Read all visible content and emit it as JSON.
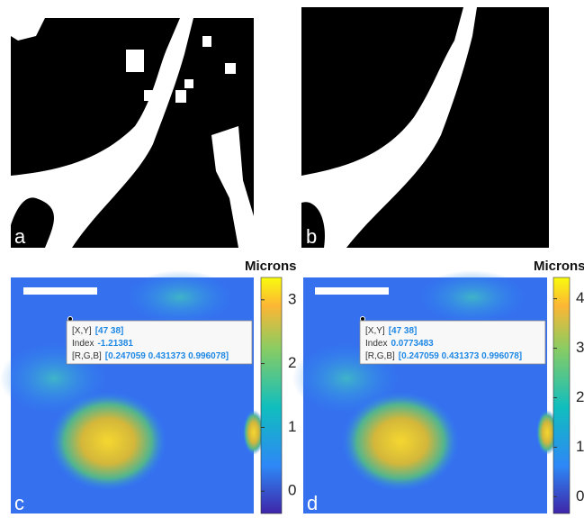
{
  "panels": [
    {
      "label": "a"
    },
    {
      "label": "b"
    },
    {
      "label": "c",
      "colorbar": {
        "title": "Microns",
        "lim": [
          -0.35,
          3.35
        ],
        "ticks": [
          0,
          1,
          2,
          3
        ]
      },
      "datatip": {
        "xy_key": "[X,Y]",
        "xy": "[47 38]",
        "index_key": "Index",
        "index": "-1.21381",
        "rgb_key": "[R,G,B]",
        "rgb": "[0.247059 0.431373 0.996078]"
      }
    },
    {
      "label": "d",
      "colorbar": {
        "title": "Microns",
        "lim": [
          -0.34,
          4.43
        ],
        "ticks": [
          0,
          1,
          2,
          3,
          4
        ]
      },
      "datatip": {
        "xy_key": "[X,Y]",
        "xy": "[47 38]",
        "index_key": "Index",
        "index": "0.0773483",
        "rgb_key": "[R,G,B]",
        "rgb": "[0.247059 0.431373 0.996078]"
      }
    }
  ]
}
